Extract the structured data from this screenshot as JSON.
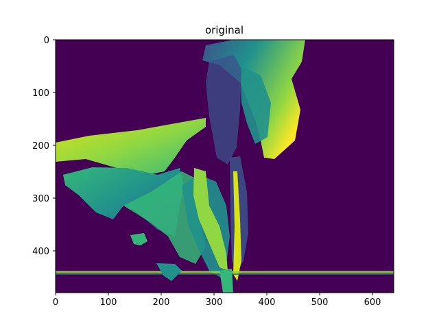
{
  "figure": {
    "title": "original",
    "colormap": "viridis",
    "background_color": "#440154",
    "x_ticks": [
      "0",
      "100",
      "200",
      "300",
      "400",
      "500",
      "600"
    ],
    "y_ticks": [
      "0",
      "100",
      "200",
      "300",
      "400"
    ],
    "x_range": [
      0,
      640
    ],
    "y_range": [
      0,
      480
    ]
  },
  "colors": {
    "dark_purple": "#440154",
    "indigo": "#3b528b",
    "teal": "#21918c",
    "green": "#35b779",
    "lime": "#90d743",
    "yellow": "#d8e219",
    "bright_yellow": "#fde725"
  }
}
